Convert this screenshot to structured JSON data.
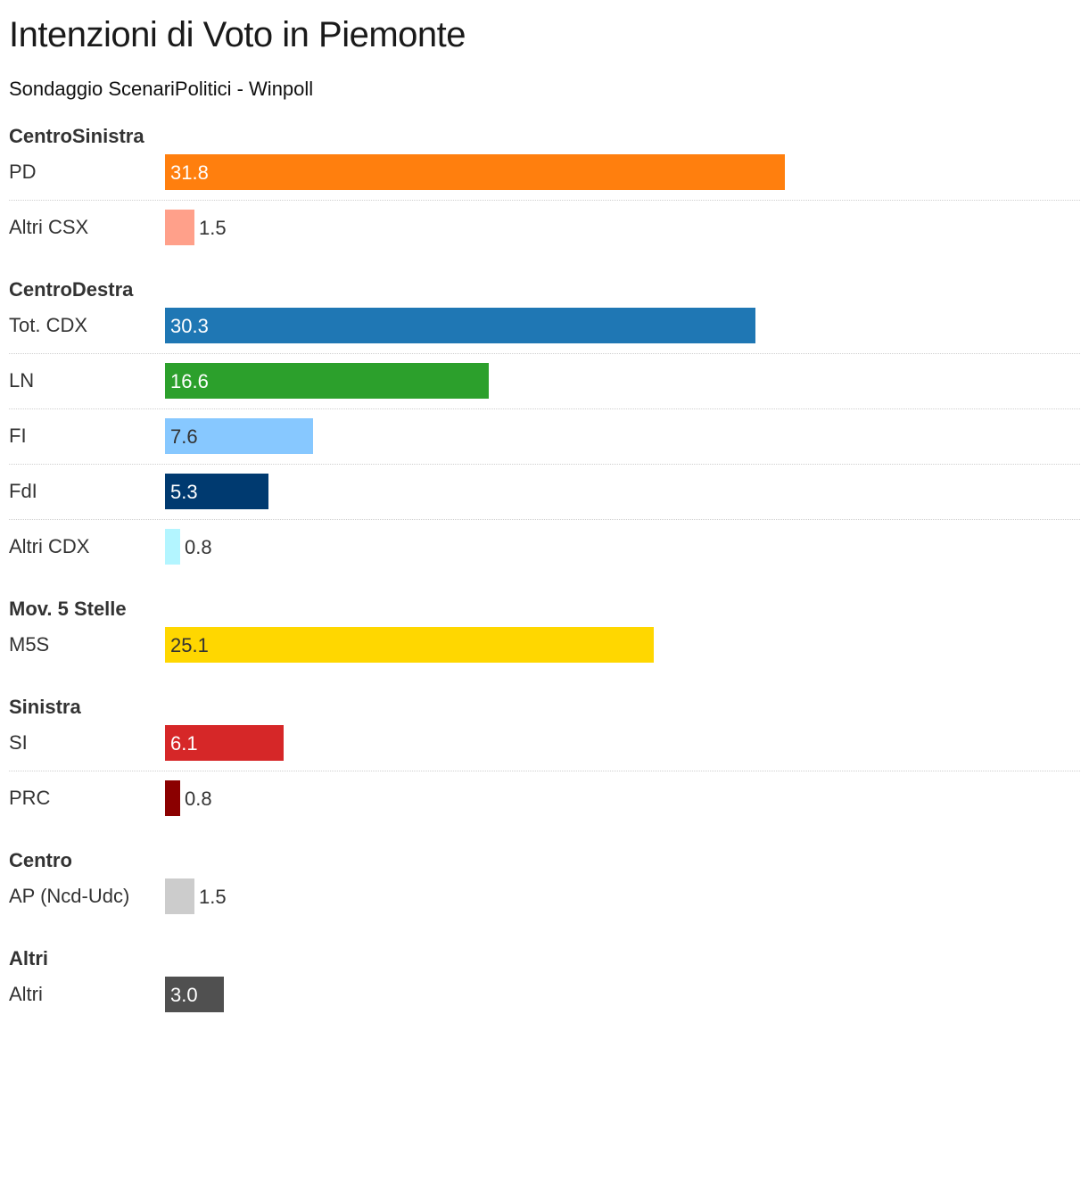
{
  "title": "Intenzioni di Voto in Piemonte",
  "subtitle": "Sondaggio ScenariPolitici - Winpoll",
  "chart_data": {
    "type": "bar",
    "orientation": "horizontal",
    "title": "Intenzioni di Voto in Piemonte",
    "subtitle": "Sondaggio ScenariPolitici - Winpoll",
    "xlim": [
      0,
      37
    ],
    "grid": false,
    "groups": [
      {
        "name": "CentroSinistra",
        "items": [
          {
            "label": "PD",
            "value": 31.8,
            "value_text": "31.8",
            "color": "#ff7f0e",
            "text_color": "#ffffff"
          },
          {
            "label": "Altri CSX",
            "value": 1.5,
            "value_text": "1.5",
            "color": "#ffa08a",
            "text_color": "#333333"
          }
        ]
      },
      {
        "name": "CentroDestra",
        "items": [
          {
            "label": "Tot. CDX",
            "value": 30.3,
            "value_text": "30.3",
            "color": "#1f77b4",
            "text_color": "#ffffff"
          },
          {
            "label": "LN",
            "value": 16.6,
            "value_text": "16.6",
            "color": "#2ca02c",
            "text_color": "#ffffff"
          },
          {
            "label": "FI",
            "value": 7.6,
            "value_text": "7.6",
            "color": "#87c8ff",
            "text_color": "#333333"
          },
          {
            "label": "FdI",
            "value": 5.3,
            "value_text": "5.3",
            "color": "#003a70",
            "text_color": "#ffffff"
          },
          {
            "label": "Altri CDX",
            "value": 0.8,
            "value_text": "0.8",
            "color": "#b3f5ff",
            "text_color": "#333333"
          }
        ]
      },
      {
        "name": "Mov. 5 Stelle",
        "items": [
          {
            "label": "M5S",
            "value": 25.1,
            "value_text": "25.1",
            "color": "#ffd700",
            "text_color": "#333333"
          }
        ]
      },
      {
        "name": "Sinistra",
        "items": [
          {
            "label": "SI",
            "value": 6.1,
            "value_text": "6.1",
            "color": "#d62728",
            "text_color": "#ffffff"
          },
          {
            "label": "PRC",
            "value": 0.8,
            "value_text": "0.8",
            "color": "#8b0000",
            "text_color": "#333333"
          }
        ]
      },
      {
        "name": "Centro",
        "items": [
          {
            "label": "AP (Ncd-Udc)",
            "value": 1.5,
            "value_text": "1.5",
            "color": "#cccccc",
            "text_color": "#333333"
          }
        ]
      },
      {
        "name": "Altri",
        "items": [
          {
            "label": "Altri",
            "value": 3.0,
            "value_text": "3.0",
            "color": "#505050",
            "text_color": "#ffffff"
          }
        ]
      }
    ]
  }
}
